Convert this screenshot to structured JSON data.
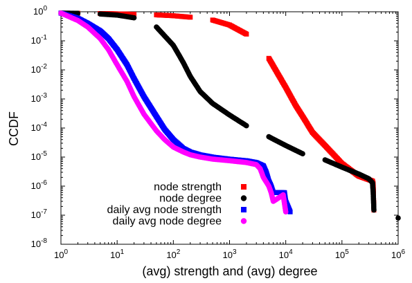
{
  "chart_data": {
    "type": "scatter",
    "xlabel": "(avg) strength and (avg) degree",
    "ylabel": "CCDF",
    "xscale": "log",
    "yscale": "log",
    "xlim": [
      1,
      1000000
    ],
    "ylim": [
      1e-08,
      1
    ],
    "grid": false,
    "legend_position": "bottom-right",
    "x_ticks": [
      {
        "value": 1,
        "base": "10",
        "exp": "0"
      },
      {
        "value": 10,
        "base": "10",
        "exp": "1"
      },
      {
        "value": 100,
        "base": "10",
        "exp": "2"
      },
      {
        "value": 1000,
        "base": "10",
        "exp": "3"
      },
      {
        "value": 10000,
        "base": "10",
        "exp": "4"
      },
      {
        "value": 100000,
        "base": "10",
        "exp": "5"
      },
      {
        "value": 1000000,
        "base": "10",
        "exp": "6"
      }
    ],
    "y_ticks": [
      {
        "value": 1,
        "base": "10",
        "exp": "0"
      },
      {
        "value": 0.1,
        "base": "10",
        "exp": "-1"
      },
      {
        "value": 0.01,
        "base": "10",
        "exp": "-2"
      },
      {
        "value": 0.001,
        "base": "10",
        "exp": "-3"
      },
      {
        "value": 0.0001,
        "base": "10",
        "exp": "-4"
      },
      {
        "value": 1e-05,
        "base": "10",
        "exp": "-5"
      },
      {
        "value": 1e-06,
        "base": "10",
        "exp": "-6"
      },
      {
        "value": 1e-07,
        "base": "10",
        "exp": "-7"
      },
      {
        "value": 1e-08,
        "base": "10",
        "exp": "-8"
      }
    ],
    "series": [
      {
        "name": "node strength",
        "color": "#ff0000",
        "marker": "square",
        "x": [
          1,
          2,
          5,
          10,
          20,
          50,
          100,
          200,
          500,
          1000,
          2000,
          5000,
          10000,
          15000,
          20000,
          30000,
          50000,
          100000,
          200000,
          350000,
          360000,
          370000
        ],
        "y": [
          0.9,
          0.89,
          0.87,
          0.85,
          0.82,
          0.78,
          0.73,
          0.65,
          0.52,
          0.35,
          0.17,
          0.025,
          0.0025,
          0.0006,
          0.00025,
          7e-05,
          2.5e-05,
          6e-06,
          2.2e-06,
          1.5e-06,
          1.2e-06,
          1.5e-07
        ]
      },
      {
        "name": "node degree",
        "color": "#000000",
        "marker": "circle",
        "x": [
          1,
          2,
          5,
          10,
          20,
          50,
          100,
          150,
          200,
          300,
          500,
          1000,
          2000,
          5000,
          10000,
          20000,
          50000,
          100000,
          200000,
          300000,
          350000,
          360000,
          370000,
          1000000
        ],
        "y": [
          0.9,
          0.88,
          0.84,
          0.77,
          0.62,
          0.3,
          0.07,
          0.018,
          0.006,
          0.0018,
          0.0007,
          0.00028,
          0.00012,
          5e-05,
          2.5e-05,
          1.3e-05,
          8e-06,
          4.5e-06,
          2.6e-06,
          1.8e-06,
          1.3e-06,
          6e-07,
          1.5e-07,
          8e-08
        ]
      },
      {
        "name": "daily avg node strength",
        "color": "#0000ff",
        "marker": "square",
        "x": [
          1,
          2,
          3,
          5,
          7,
          10,
          15,
          20,
          30,
          50,
          70,
          100,
          150,
          200,
          300,
          500,
          1000,
          2000,
          3000,
          4000,
          4500,
          5000,
          5500,
          6000,
          9500,
          10000,
          12000
        ],
        "y": [
          0.9,
          0.6,
          0.4,
          0.22,
          0.12,
          0.05,
          0.015,
          0.005,
          0.0012,
          0.00025,
          9e-05,
          4e-05,
          2e-05,
          1.5e-05,
          1.2e-05,
          1e-05,
          8.5e-06,
          7.5e-06,
          6.5e-06,
          5e-06,
          3e-06,
          1.5e-06,
          1e-06,
          6e-07,
          6e-07,
          3e-07,
          1.3e-07
        ]
      },
      {
        "name": "daily avg node degree",
        "color": "#ff00ff",
        "marker": "circle",
        "x": [
          1,
          2,
          3,
          5,
          7,
          10,
          15,
          20,
          30,
          50,
          70,
          100,
          150,
          200,
          300,
          500,
          1000,
          2000,
          3000,
          3500,
          4000,
          5000,
          5500,
          6000,
          9000,
          10000
        ],
        "y": [
          0.9,
          0.5,
          0.3,
          0.12,
          0.05,
          0.015,
          0.004,
          0.0012,
          0.0003,
          8e-05,
          4e-05,
          2.2e-05,
          1.5e-05,
          1.2e-05,
          1e-05,
          8.5e-06,
          7.5e-06,
          6.5e-06,
          5.5e-06,
          4e-06,
          2e-06,
          1e-06,
          6e-07,
          3e-07,
          5e-07,
          1.3e-07
        ]
      }
    ]
  }
}
